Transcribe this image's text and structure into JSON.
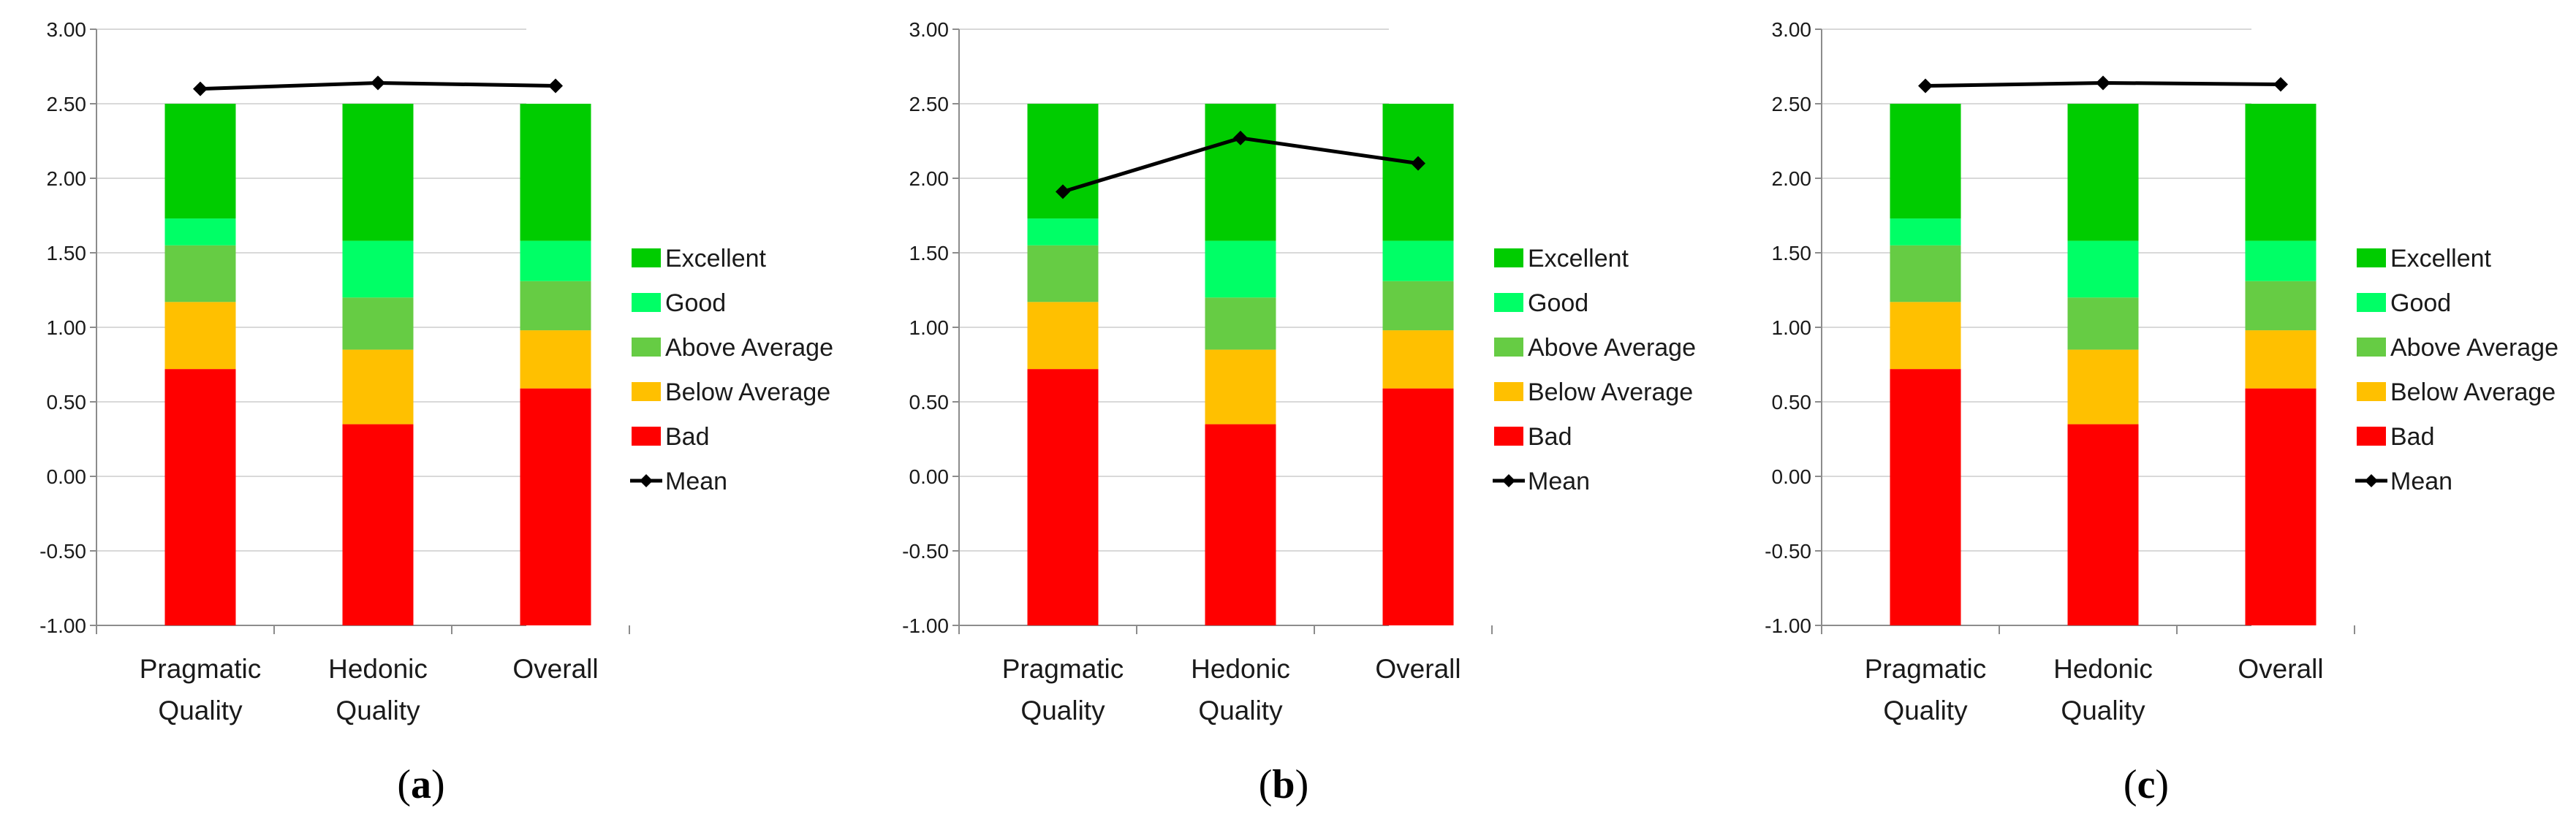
{
  "chart_data": [
    {
      "type": "bar",
      "stacked": true,
      "panel_label": "a",
      "categories": [
        [
          "Pragmatic",
          "Quality"
        ],
        [
          "Hedonic",
          "Quality"
        ],
        [
          "Overall"
        ]
      ],
      "ylim": [
        -1.0,
        3.0
      ],
      "yticks": [
        "-1.00",
        "-0.50",
        "0.00",
        "0.50",
        "1.00",
        "1.50",
        "2.00",
        "2.50",
        "3.00"
      ],
      "series": [
        {
          "name": "Bad",
          "color": "#ff0000",
          "values": [
            1.72,
            1.35,
            1.59
          ]
        },
        {
          "name": "Below Average",
          "color": "#ffc000",
          "values": [
            0.45,
            0.5,
            0.39
          ]
        },
        {
          "name": "Above Average",
          "color": "#66cc44",
          "values": [
            0.38,
            0.35,
            0.33
          ]
        },
        {
          "name": "Good",
          "color": "#00ff66",
          "values": [
            0.18,
            0.38,
            0.27
          ]
        },
        {
          "name": "Excellent",
          "color": "#00cc00",
          "values": [
            0.77,
            0.92,
            0.92
          ]
        }
      ],
      "mean": {
        "name": "Mean",
        "color": "#000000",
        "values": [
          2.6,
          2.64,
          2.62
        ]
      },
      "legend": [
        "Excellent",
        "Good",
        "Above Average",
        "Below Average",
        "Bad",
        "Mean"
      ],
      "legend_position": "right"
    },
    {
      "type": "bar",
      "stacked": true,
      "panel_label": "b",
      "categories": [
        [
          "Pragmatic",
          "Quality"
        ],
        [
          "Hedonic",
          "Quality"
        ],
        [
          "Overall"
        ]
      ],
      "ylim": [
        -1.0,
        3.0
      ],
      "yticks": [
        "-1.00",
        "-0.50",
        "0.00",
        "0.50",
        "1.00",
        "1.50",
        "2.00",
        "2.50",
        "3.00"
      ],
      "series": [
        {
          "name": "Bad",
          "color": "#ff0000",
          "values": [
            1.72,
            1.35,
            1.59
          ]
        },
        {
          "name": "Below Average",
          "color": "#ffc000",
          "values": [
            0.45,
            0.5,
            0.39
          ]
        },
        {
          "name": "Above Average",
          "color": "#66cc44",
          "values": [
            0.38,
            0.35,
            0.33
          ]
        },
        {
          "name": "Good",
          "color": "#00ff66",
          "values": [
            0.18,
            0.38,
            0.27
          ]
        },
        {
          "name": "Excellent",
          "color": "#00cc00",
          "values": [
            0.77,
            0.92,
            0.92
          ]
        }
      ],
      "mean": {
        "name": "Mean",
        "color": "#000000",
        "values": [
          1.91,
          2.27,
          2.1
        ]
      },
      "legend": [
        "Excellent",
        "Good",
        "Above Average",
        "Below Average",
        "Bad",
        "Mean"
      ],
      "legend_position": "right"
    },
    {
      "type": "bar",
      "stacked": true,
      "panel_label": "c",
      "categories": [
        [
          "Pragmatic",
          "Quality"
        ],
        [
          "Hedonic",
          "Quality"
        ],
        [
          "Overall"
        ]
      ],
      "ylim": [
        -1.0,
        3.0
      ],
      "yticks": [
        "-1.00",
        "-0.50",
        "0.00",
        "0.50",
        "1.00",
        "1.50",
        "2.00",
        "2.50",
        "3.00"
      ],
      "series": [
        {
          "name": "Bad",
          "color": "#ff0000",
          "values": [
            1.72,
            1.35,
            1.59
          ]
        },
        {
          "name": "Below Average",
          "color": "#ffc000",
          "values": [
            0.45,
            0.5,
            0.39
          ]
        },
        {
          "name": "Above Average",
          "color": "#66cc44",
          "values": [
            0.38,
            0.35,
            0.33
          ]
        },
        {
          "name": "Good",
          "color": "#00ff66",
          "values": [
            0.18,
            0.38,
            0.27
          ]
        },
        {
          "name": "Excellent",
          "color": "#00cc00",
          "values": [
            0.77,
            0.92,
            0.92
          ]
        }
      ],
      "mean": {
        "name": "Mean",
        "color": "#000000",
        "values": [
          2.62,
          2.64,
          2.63
        ]
      },
      "legend": [
        "Excellent",
        "Good",
        "Above Average",
        "Below Average",
        "Bad",
        "Mean"
      ],
      "legend_position": "right"
    }
  ]
}
